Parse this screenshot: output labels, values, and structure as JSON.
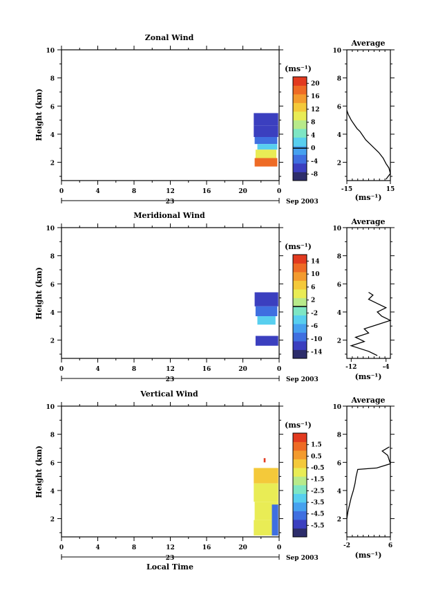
{
  "date_label": "Sep 2003",
  "day_label": "23",
  "xlabel": "Local Time",
  "ylabel": "Height (km)",
  "unit_label": "(ms⁻¹)",
  "avg_title": "Average",
  "chart_data": [
    {
      "type": "heatmap",
      "title": "Zonal Wind",
      "xlabel": "",
      "ylabel": "Height (km)",
      "xlim": [
        0,
        24
      ],
      "ylim": [
        0.7,
        10
      ],
      "x_ticks": [
        "0",
        "4",
        "8",
        "12",
        "16",
        "20",
        "0"
      ],
      "y_ticks": [
        "2",
        "4",
        "6",
        "8",
        "10"
      ],
      "colorbar": {
        "label": "(ms⁻¹)",
        "ticks": [
          "20",
          "16",
          "12",
          "8",
          "4",
          "0",
          "-4",
          "-8"
        ],
        "min": -10,
        "max": 22,
        "zero_line": 0
      },
      "blocks": [
        {
          "x0": 21.2,
          "x1": 23.9,
          "y0": 4.6,
          "y1": 5.5,
          "value": -7
        },
        {
          "x0": 21.2,
          "x1": 23.9,
          "y0": 3.8,
          "y1": 4.6,
          "value": -6
        },
        {
          "x0": 21.3,
          "x1": 23.8,
          "y0": 3.3,
          "y1": 3.8,
          "value": -3
        },
        {
          "x0": 21.6,
          "x1": 23.8,
          "y0": 2.9,
          "y1": 3.3,
          "value": 3
        },
        {
          "x0": 21.4,
          "x1": 23.7,
          "y0": 2.3,
          "y1": 2.9,
          "value": 9
        },
        {
          "x0": 21.3,
          "x1": 23.8,
          "y0": 1.7,
          "y1": 2.3,
          "value": 17
        }
      ],
      "average": {
        "xlim": [
          -15,
          15
        ],
        "x_ticks": [
          "-15",
          "15"
        ],
        "xlabel": "(ms⁻¹)",
        "x": [
          -15,
          -14,
          -12,
          -10,
          -8,
          -6,
          -4,
          -2,
          1,
          4,
          7,
          10,
          12,
          14,
          15,
          12
        ],
        "y": [
          5.7,
          5.4,
          5.0,
          4.7,
          4.4,
          4.2,
          3.9,
          3.6,
          3.3,
          3.0,
          2.7,
          2.3,
          1.9,
          1.6,
          1.2,
          0.8
        ]
      }
    },
    {
      "type": "heatmap",
      "title": "Meridional Wind",
      "xlabel": "",
      "ylabel": "Height (km)",
      "xlim": [
        0,
        24
      ],
      "ylim": [
        0.7,
        10
      ],
      "x_ticks": [
        "0",
        "4",
        "8",
        "12",
        "16",
        "20",
        "0"
      ],
      "y_ticks": [
        "2",
        "4",
        "6",
        "8",
        "10"
      ],
      "colorbar": {
        "label": "(ms⁻¹)",
        "ticks": [
          "14",
          "10",
          "6",
          "2",
          "-2",
          "-6",
          "-10",
          "-14"
        ],
        "min": -16,
        "max": 16,
        "zero_line": 0
      },
      "blocks": [
        {
          "x0": 21.3,
          "x1": 23.9,
          "y0": 4.4,
          "y1": 5.4,
          "value": -12
        },
        {
          "x0": 21.4,
          "x1": 23.8,
          "y0": 3.7,
          "y1": 4.4,
          "value": -9
        },
        {
          "x0": 21.6,
          "x1": 23.6,
          "y0": 3.1,
          "y1": 3.7,
          "value": -5
        },
        {
          "x0": 21.4,
          "x1": 23.9,
          "y0": 1.6,
          "y1": 2.3,
          "value": -13
        }
      ],
      "average": {
        "xlim": [
          -13,
          -3
        ],
        "x_ticks": [
          "-12",
          "-4"
        ],
        "xlabel": "(ms⁻¹)",
        "x": [
          -8,
          -7,
          -8,
          -6,
          -4,
          -6,
          -5,
          -3,
          -6,
          -9,
          -8,
          -11,
          -9,
          -12,
          -8,
          -6
        ],
        "y": [
          5.4,
          5.2,
          4.9,
          4.6,
          4.3,
          4.0,
          3.7,
          3.4,
          3.1,
          2.8,
          2.5,
          2.2,
          1.9,
          1.6,
          1.2,
          0.9
        ]
      }
    },
    {
      "type": "heatmap",
      "title": "Vertical Wind",
      "xlabel": "Local Time",
      "ylabel": "Height (km)",
      "xlim": [
        0,
        24
      ],
      "ylim": [
        0.7,
        10
      ],
      "x_ticks": [
        "0",
        "4",
        "8",
        "12",
        "16",
        "20",
        "0"
      ],
      "y_ticks": [
        "2",
        "4",
        "6",
        "8",
        "10"
      ],
      "colorbar": {
        "label": "(ms⁻¹)",
        "ticks": [
          "1.5",
          "0.5",
          "-0.5",
          "-1.5",
          "-2.5",
          "-3.5",
          "-4.5",
          "-5.5"
        ],
        "min": -6.5,
        "max": 2.5,
        "zero_line": null
      },
      "blocks": [
        {
          "x0": 22.3,
          "x1": 22.5,
          "y0": 6.0,
          "y1": 6.3,
          "value": 2
        },
        {
          "x0": 21.2,
          "x1": 23.9,
          "y0": 4.5,
          "y1": 5.6,
          "value": -0.3
        },
        {
          "x0": 21.2,
          "x1": 23.9,
          "y0": 3.2,
          "y1": 4.5,
          "value": -0.8
        },
        {
          "x0": 21.3,
          "x1": 23.9,
          "y0": 1.9,
          "y1": 3.2,
          "value": -1.2
        },
        {
          "x0": 21.2,
          "x1": 23.8,
          "y0": 0.8,
          "y1": 1.9,
          "value": -0.6
        },
        {
          "x0": 23.2,
          "x1": 23.9,
          "y0": 0.8,
          "y1": 3.0,
          "value": -4.5
        }
      ],
      "average": {
        "xlim": [
          -2,
          6
        ],
        "x_ticks": [
          "-2",
          "6"
        ],
        "xlabel": "(ms⁻¹)",
        "x": [
          5.8,
          4.5,
          5.5,
          6,
          3.5,
          0,
          -0.3,
          -0.5,
          -0.8,
          -1.2,
          -1.5,
          -1.8,
          -2
        ],
        "y": [
          7.1,
          6.8,
          6.5,
          5.9,
          5.6,
          5.5,
          5.0,
          4.5,
          4.0,
          3.5,
          3.0,
          2.5,
          2.0
        ]
      }
    }
  ]
}
